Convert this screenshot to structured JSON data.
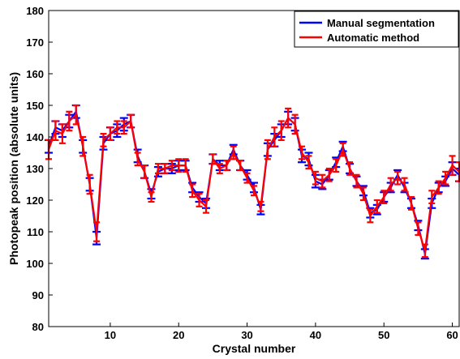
{
  "chart_data": {
    "type": "line",
    "xlabel": "Crystal number",
    "ylabel": "Photopeak position (absolute units)",
    "xlim": [
      1,
      61
    ],
    "ylim": [
      80,
      180
    ],
    "xticks": [
      10,
      20,
      30,
      40,
      50,
      60
    ],
    "yticks": [
      80,
      90,
      100,
      110,
      120,
      130,
      140,
      150,
      160,
      170,
      180
    ],
    "grid": false,
    "legend_position": "top-right",
    "error_bars": true,
    "x": [
      1,
      2,
      3,
      4,
      5,
      6,
      7,
      8,
      9,
      10,
      11,
      12,
      13,
      14,
      15,
      16,
      17,
      18,
      19,
      20,
      21,
      22,
      23,
      24,
      25,
      26,
      27,
      28,
      29,
      30,
      31,
      32,
      33,
      34,
      35,
      36,
      37,
      38,
      39,
      40,
      41,
      42,
      43,
      44,
      45,
      46,
      47,
      48,
      49,
      50,
      51,
      52,
      53,
      54,
      55,
      56,
      57,
      58,
      59,
      60,
      61
    ],
    "series": [
      {
        "name": "Manual segmentation",
        "color": "#0000ff",
        "values": [
          137,
          143,
          142,
          145,
          148,
          137,
          125,
          108,
          138,
          141,
          142,
          144,
          145,
          134,
          129,
          122,
          129,
          130,
          130,
          131,
          131,
          124,
          121,
          119,
          133,
          131,
          131,
          136,
          131,
          128,
          124,
          117,
          136,
          139,
          142,
          146,
          144,
          134,
          133,
          126,
          125,
          128,
          132,
          137,
          130,
          126,
          123,
          116,
          117,
          121,
          124,
          128,
          124,
          119,
          112,
          103,
          119,
          124,
          126,
          130,
          128
        ],
        "errors": [
          2,
          2,
          2,
          2,
          2,
          2,
          2,
          2,
          2,
          2,
          2,
          2,
          2,
          2,
          2,
          1.5,
          1.5,
          1.5,
          1.5,
          1.5,
          1.5,
          1.5,
          1.5,
          1.5,
          1.5,
          1.5,
          1.5,
          1.5,
          1.5,
          1.5,
          1.5,
          1.5,
          2,
          2,
          2,
          2,
          2,
          2,
          2,
          2,
          1.5,
          1.5,
          1.5,
          1.5,
          1.5,
          1.5,
          1.5,
          1.5,
          1.5,
          1.5,
          1.5,
          1.5,
          1.5,
          1.5,
          1.5,
          1.5,
          1.5,
          1.5,
          1.5,
          2,
          2
        ]
      },
      {
        "name": "Automatic method",
        "color": "#ff0000",
        "values": [
          136,
          142,
          141,
          145,
          147,
          137,
          125,
          110,
          139,
          141,
          143,
          143,
          145,
          133,
          129,
          121,
          130,
          130,
          131,
          131,
          131,
          123,
          120,
          118,
          133,
          130,
          131,
          135,
          131,
          127,
          123,
          118,
          136,
          140,
          142,
          146,
          144,
          135,
          132,
          127,
          126,
          128,
          131,
          136,
          130,
          126,
          122,
          115,
          118,
          121,
          125,
          127,
          125,
          119,
          111,
          104,
          121,
          124,
          127,
          131,
          129
        ],
        "errors": [
          3,
          3,
          3,
          3,
          3,
          3,
          3,
          3,
          2,
          2,
          2,
          2,
          2,
          2,
          2,
          1.5,
          1.5,
          1.5,
          1.5,
          2,
          2,
          2,
          2,
          2,
          1.5,
          1.5,
          1.5,
          2,
          1.5,
          1.5,
          1.5,
          1.5,
          3,
          3,
          3,
          3,
          3,
          2,
          2,
          2,
          2,
          2,
          2,
          2,
          2,
          2,
          2,
          2,
          2,
          2,
          2,
          2,
          2,
          2,
          2,
          2,
          2,
          2,
          2,
          3,
          3
        ]
      }
    ]
  }
}
